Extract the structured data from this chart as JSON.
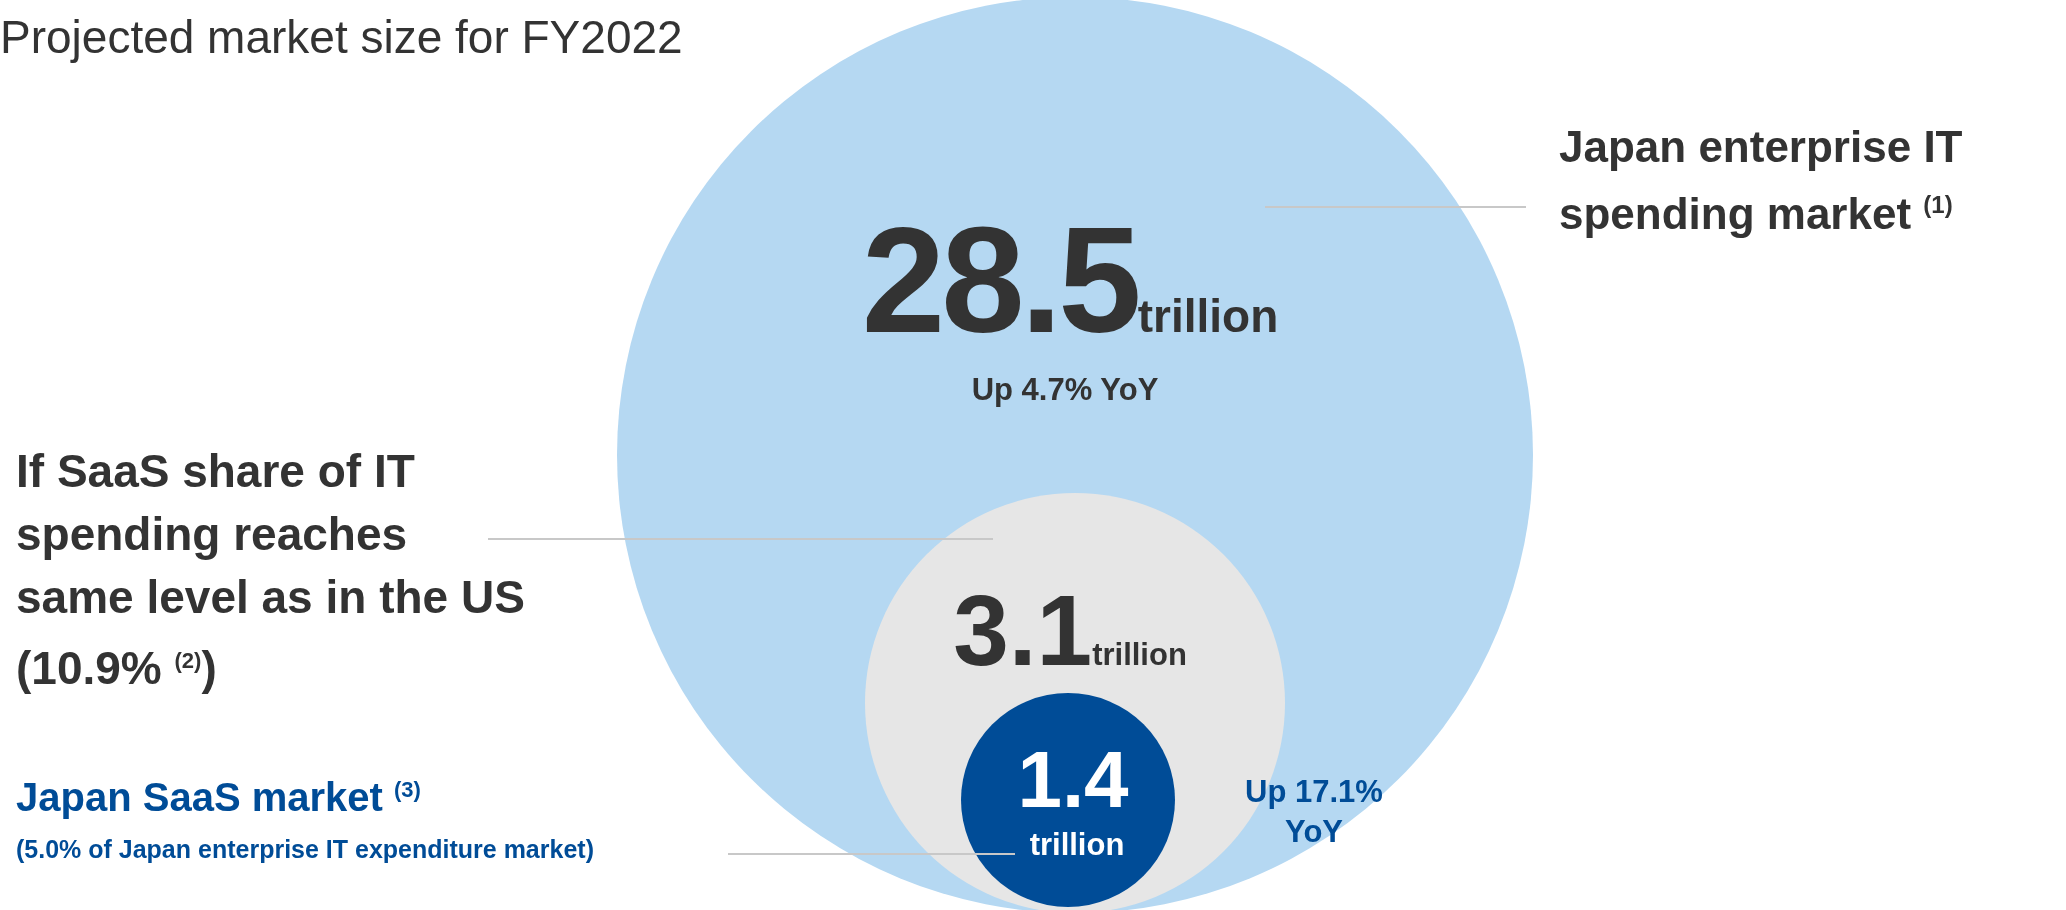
{
  "chart_data": {
    "type": "other",
    "title": "Projected market size for FY2022",
    "categories": [
      "Japan enterprise IT spending market $^{(1)}$",
      "If SaaS share of IT spending reaches same level as in the US (10.9% $^{(2)}$)",
      "Japan SaaS market $^{(3)}$"
    ],
    "values": [
      28.5,
      3.1,
      1.4
    ],
    "data_labels": true,
    "colors": [
      "#b5d8f2",
      "#e6e6e6",
      "#004c97"
    ],
    "annotations": [
      "trillion",
      "Up 4.7% YoY",
      "trillion",
      "trillion",
      "Up 17.1% YoY",
      "(5.0% of Japan enterprise IT expenditure market)"
    ]
  }
}
